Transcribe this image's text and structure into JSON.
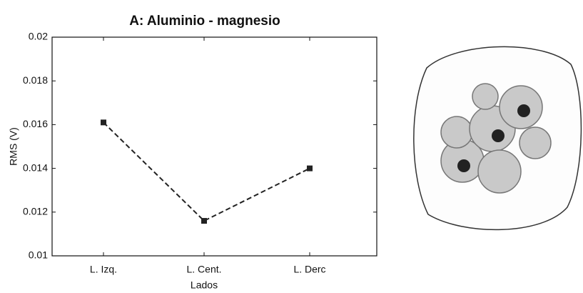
{
  "chart_data": {
    "type": "line",
    "title": "A: Aluminio - magnesio",
    "x_label": "Lados",
    "y_label": "RMS (V)",
    "categories": [
      "L. Izq.",
      "L. Cent.",
      "L. Derc"
    ],
    "values": [
      0.0161,
      0.0116,
      0.014
    ],
    "color": "#222222",
    "line_style": "dashed",
    "ylim": [
      0.01,
      0.02
    ],
    "yticks": [
      0.01,
      0.012,
      0.014,
      0.016,
      0.018,
      0.02
    ]
  }
}
